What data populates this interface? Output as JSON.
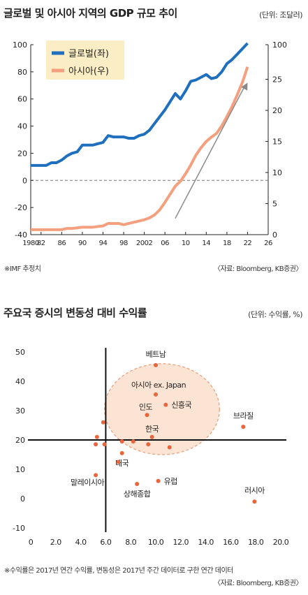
{
  "chart1": {
    "title": "글로벌 및 아시아 지역의 GDP 규모 추이",
    "unit": "(단위: 조달러)",
    "note": "※IMF 추정치",
    "source": "〈자료: Bloomberg, KB증권〉",
    "colors": {
      "global": "#1f6fbf",
      "asia": "#f4a07f",
      "legend_bg": "#fbeec4",
      "arrow": "#8a8a8a"
    }
  },
  "chart2": {
    "title": "주요국 증시의 변동성 대비 수익률",
    "unit": "(단위: 수익률, %)",
    "note": "※수익률은 2017년 연간 수익률, 변동성은 2017년 주간 데이터로 구한 연간 데이터",
    "source": "〈자료: Bloomberg, KB증권〉",
    "colors": {
      "dot": "#e8663d",
      "ellipse_fill": "#fce4d4",
      "ellipse_stroke": "#e8a27f"
    }
  },
  "chart_data": [
    {
      "type": "line",
      "title": "글로벌 및 아시아 지역의 GDP 규모 추이",
      "x_ticks": [
        1980,
        1982,
        1986,
        1990,
        1994,
        1998,
        2002,
        2006,
        2010,
        2014,
        2018,
        2022,
        2026
      ],
      "x_tick_labels": [
        "1980",
        "82",
        "86",
        "90",
        "94",
        "98",
        "2002",
        "06",
        "10",
        "14",
        "18",
        "22",
        "26"
      ],
      "xlim": [
        1980,
        2026
      ],
      "ylim_left": [
        -40,
        100
      ],
      "yticks_left": [
        -40,
        -20,
        0,
        20,
        40,
        60,
        80,
        100
      ],
      "ylim_right": [
        0,
        100
      ],
      "yticks_right": [
        0,
        5,
        10,
        15,
        20,
        25,
        100
      ],
      "right_axis_values_note": "",
      "zero_line": "dashed",
      "legend_position": "top-left",
      "series": [
        {
          "name": "글로벌(좌)",
          "axis": "left",
          "x": [
            1980,
            1981,
            1982,
            1983,
            1984,
            1985,
            1986,
            1987,
            1988,
            1989,
            1990,
            1991,
            1992,
            1993,
            1994,
            1995,
            1996,
            1997,
            1998,
            1999,
            2000,
            2001,
            2002,
            2003,
            2004,
            2005,
            2006,
            2007,
            2008,
            2009,
            2010,
            2011,
            2012,
            2013,
            2014,
            2015,
            2016,
            2017,
            2018,
            2019,
            2020,
            2021,
            2022
          ],
          "y": [
            11,
            11,
            11,
            11,
            13,
            13,
            15,
            18,
            20,
            21,
            26,
            26,
            26,
            27,
            28,
            33,
            32,
            32,
            32,
            31,
            31,
            33,
            34,
            37,
            42,
            47,
            52,
            58,
            64,
            60,
            66,
            73,
            74,
            76,
            78,
            75,
            76,
            80,
            86,
            89,
            93,
            97,
            101
          ]
        },
        {
          "name": "아시아(우)",
          "axis": "right",
          "x": [
            1980,
            1982,
            1984,
            1986,
            1987,
            1988,
            1989,
            1990,
            1992,
            1993,
            1994,
            1995,
            1996,
            1997,
            1998,
            1999,
            2000,
            2001,
            2002,
            2003,
            2004,
            2005,
            2006,
            2007,
            2008,
            2009,
            2010,
            2011,
            2012,
            2013,
            2014,
            2015,
            2016,
            2017,
            2018,
            2019,
            2020,
            2021,
            2022
          ],
          "y": [
            0.8,
            0.8,
            0.8,
            0.8,
            1.0,
            1.0,
            1.1,
            1.2,
            1.2,
            1.3,
            1.4,
            1.8,
            1.8,
            1.8,
            1.6,
            1.8,
            2.0,
            2.2,
            2.4,
            2.7,
            3.2,
            4.0,
            5.2,
            6.5,
            7.8,
            8.6,
            9.8,
            11.2,
            12.8,
            14.0,
            15.0,
            15.7,
            16.3,
            17.5,
            19.0,
            20.6,
            22.5,
            24.5,
            27.0
          ]
        }
      ],
      "annotation": {
        "type": "arrow",
        "from": [
          2008,
          -28
        ],
        "to": [
          2022,
          72
        ]
      }
    },
    {
      "type": "scatter",
      "title": "주요국 증시의 변동성 대비 수익률",
      "xlim": [
        0,
        20
      ],
      "ylim": [
        -10,
        50
      ],
      "x_ticks": [
        0,
        2.0,
        4.0,
        6.0,
        8.0,
        10.0,
        12.0,
        14.0,
        16.0,
        18.0,
        20.0
      ],
      "x_tick_labels": [
        "0",
        "2.0",
        "4.0",
        "6.0",
        "8.0",
        "10.0",
        "12.0",
        "14.0",
        "16.0",
        "18.0",
        "20.0"
      ],
      "y_ticks": [
        -10,
        0,
        10,
        20,
        30,
        40,
        50
      ],
      "cross_axes": {
        "x_at": 6.0,
        "y_at": 20
      },
      "highlight_ellipse": {
        "cx": 10.5,
        "cy": 30.5,
        "rx": 4.6,
        "ry": 15.5
      },
      "points": [
        {
          "x": 10.0,
          "y": 45.5,
          "label": "베트남"
        },
        {
          "x": 10.0,
          "y": 35.5,
          "label": "아시아 ex. Japan"
        },
        {
          "x": 10.8,
          "y": 32.0,
          "label": "신흥국"
        },
        {
          "x": 9.3,
          "y": 28.5,
          "label": "인도"
        },
        {
          "x": 9.7,
          "y": 21.0,
          "label": "한국"
        },
        {
          "x": 17.0,
          "y": 24.5,
          "label": "브라질"
        },
        {
          "x": 7.3,
          "y": 15.5,
          "label": "태국"
        },
        {
          "x": 5.2,
          "y": 8.0,
          "label": "말레이시아"
        },
        {
          "x": 8.5,
          "y": 5.0,
          "label": "상해종합"
        },
        {
          "x": 10.2,
          "y": 6.0,
          "label": "유럽"
        },
        {
          "x": 17.9,
          "y": -1.0,
          "label": "러시아"
        },
        {
          "x": 5.3,
          "y": 21.0,
          "label": ""
        },
        {
          "x": 5.8,
          "y": 26.0,
          "label": ""
        },
        {
          "x": 5.2,
          "y": 18.5,
          "label": ""
        },
        {
          "x": 5.9,
          "y": 18.5,
          "label": ""
        },
        {
          "x": 7.3,
          "y": 19.5,
          "label": ""
        },
        {
          "x": 8.2,
          "y": 19.5,
          "label": ""
        },
        {
          "x": 7.0,
          "y": 12.5,
          "label": ""
        },
        {
          "x": 9.4,
          "y": 18.5,
          "label": ""
        },
        {
          "x": 11.1,
          "y": 17.5,
          "label": ""
        }
      ]
    }
  ]
}
